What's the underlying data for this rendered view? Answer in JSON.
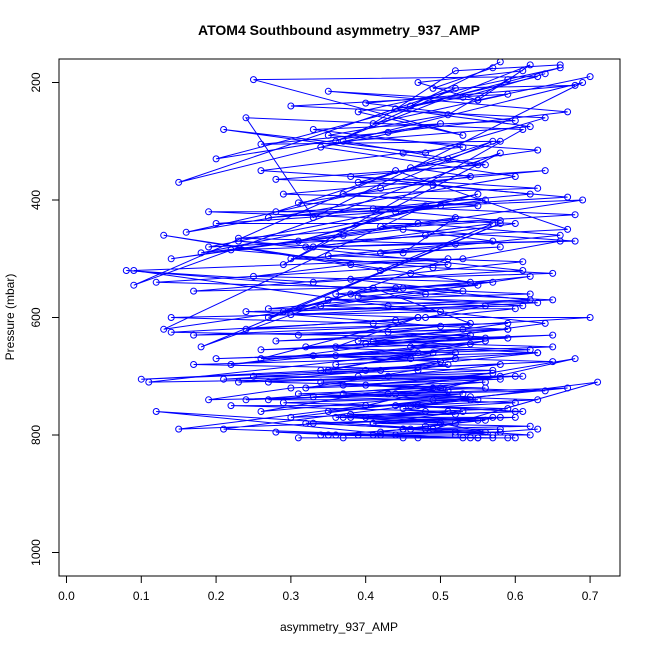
{
  "chart_data": {
    "type": "line",
    "title": "ATOM4 Southbound asymmetry_937_AMP",
    "xlabel": "asymmetry_937_AMP",
    "ylabel": "Pressure (mbar)",
    "xlim": [
      -0.01,
      0.74
    ],
    "ylim": [
      1040,
      160
    ],
    "y_reversed": true,
    "x_ticks": [
      0.0,
      0.1,
      0.2,
      0.3,
      0.4,
      0.5,
      0.6,
      0.7
    ],
    "x_tick_labels": [
      "0.0",
      "0.1",
      "0.2",
      "0.3",
      "0.4",
      "0.5",
      "0.6",
      "0.7"
    ],
    "y_ticks": [
      200,
      400,
      600,
      800,
      1000
    ],
    "y_tick_labels": [
      "200",
      "400",
      "600",
      "800",
      "1000"
    ],
    "grid": false,
    "legend": "none",
    "series_color": "#0000ff",
    "marker": "open-circle",
    "series": [
      {
        "x": [
          0.7,
          0.55,
          0.62,
          0.36,
          0.52,
          0.15,
          0.69,
          0.33,
          0.24,
          0.61,
          0.29,
          0.58,
          0.09,
          0.44,
          0.67,
          0.19,
          0.55,
          0.31,
          0.48,
          0.13,
          0.62,
          0.38,
          0.27,
          0.58,
          0.18,
          0.51,
          0.09,
          0.43,
          0.64,
          0.22,
          0.56,
          0.35,
          0.47,
          0.11,
          0.6,
          0.3,
          0.19,
          0.53,
          0.26,
          0.68,
          0.4,
          0.15,
          0.57,
          0.32,
          0.49,
          0.71,
          0.21,
          0.44,
          0.12,
          0.62,
          0.36,
          0.28,
          0.55,
          0.45,
          0.31,
          0.59,
          0.6
        ],
        "y": [
          190,
          230,
          170,
          300,
          210,
          370,
          200,
          430,
          260,
          280,
          510,
          320,
          545,
          350,
          450,
          480,
          390,
          470,
          410,
          620,
          530,
          560,
          600,
          440,
          650,
          500,
          520,
          580,
          610,
          680,
          640,
          690,
          660,
          710,
          700,
          720,
          740,
          730,
          760,
          670,
          750,
          790,
          770,
          780,
          790,
          710,
          790,
          800,
          760,
          800,
          800,
          795,
          805,
          805,
          805,
          805,
          805
        ]
      },
      {
        "x": [
          0.58,
          0.46,
          0.63,
          0.25,
          0.53,
          0.39,
          0.66,
          0.2,
          0.5,
          0.34,
          0.6,
          0.16,
          0.42,
          0.57,
          0.28,
          0.69,
          0.37,
          0.14,
          0.52,
          0.45,
          0.23,
          0.61,
          0.33,
          0.08,
          0.48,
          0.65,
          0.29,
          0.41,
          0.54,
          0.17,
          0.59,
          0.36,
          0.47,
          0.26,
          0.63,
          0.4,
          0.1,
          0.51,
          0.32,
          0.56,
          0.24,
          0.44,
          0.67,
          0.35,
          0.49,
          0.3,
          0.53,
          0.41,
          0.58,
          0.46,
          0.34,
          0.52,
          0.63
        ],
        "y": [
          165,
          240,
          190,
          195,
          290,
          250,
          175,
          330,
          270,
          310,
          360,
          455,
          380,
          300,
          420,
          400,
          460,
          500,
          430,
          490,
          470,
          520,
          540,
          520,
          560,
          570,
          590,
          550,
          610,
          630,
          620,
          650,
          600,
          670,
          660,
          690,
          705,
          680,
          720,
          710,
          740,
          730,
          720,
          760,
          740,
          770,
          760,
          780,
          770,
          790,
          800,
          800,
          790
        ]
      },
      {
        "x": [
          0.66,
          0.52,
          0.41,
          0.59,
          0.3,
          0.64,
          0.48,
          0.21,
          0.55,
          0.38,
          0.62,
          0.27,
          0.5,
          0.18,
          0.45,
          0.68,
          0.33,
          0.57,
          0.42,
          0.13,
          0.54,
          0.36,
          0.61,
          0.24,
          0.47,
          0.7,
          0.31,
          0.53,
          0.39,
          0.65,
          0.2,
          0.49,
          0.34,
          0.58,
          0.43,
          0.27,
          0.56,
          0.37,
          0.63,
          0.46,
          0.22,
          0.51,
          0.4,
          0.6,
          0.33,
          0.48,
          0.57,
          0.42,
          0.54,
          0.37
        ],
        "y": [
          170,
          180,
          270,
          220,
          240,
          260,
          320,
          280,
          340,
          360,
          390,
          430,
          410,
          490,
          450,
          470,
          480,
          440,
          520,
          460,
          540,
          560,
          580,
          590,
          600,
          600,
          630,
          620,
          640,
          650,
          670,
          660,
          690,
          680,
          700,
          710,
          720,
          730,
          740,
          750,
          750,
          760,
          770,
          770,
          780,
          790,
          800,
          800,
          805,
          805
        ]
      },
      {
        "x": [
          0.61,
          0.47,
          0.55,
          0.35,
          0.67,
          0.43,
          0.26,
          0.58,
          0.51,
          0.39,
          0.64,
          0.29,
          0.56,
          0.44,
          0.19,
          0.6,
          0.48,
          0.32,
          0.66,
          0.53,
          0.38,
          0.25,
          0.57,
          0.45,
          0.62,
          0.34,
          0.5,
          0.14,
          0.41,
          0.59,
          0.28,
          0.54,
          0.46,
          0.63,
          0.36,
          0.52,
          0.42,
          0.23,
          0.58,
          0.49,
          0.31,
          0.55,
          0.44,
          0.61,
          0.38,
          0.5,
          0.56
        ],
        "y": [
          180,
          200,
          230,
          215,
          250,
          285,
          305,
          300,
          330,
          370,
          350,
          390,
          400,
          420,
          420,
          440,
          460,
          480,
          470,
          500,
          510,
          530,
          540,
          550,
          570,
          580,
          590,
          600,
          610,
          620,
          640,
          630,
          650,
          660,
          680,
          670,
          690,
          710,
          700,
          720,
          730,
          740,
          750,
          760,
          770,
          780,
          795
        ]
      },
      {
        "x": [
          0.57,
          0.49,
          0.68,
          0.4,
          0.6,
          0.33,
          0.53,
          0.45,
          0.26,
          0.63,
          0.37,
          0.55,
          0.2,
          0.47,
          0.66,
          0.42,
          0.58,
          0.3,
          0.51,
          0.12,
          0.44,
          0.62,
          0.35,
          0.56,
          0.48,
          0.24,
          0.59,
          0.41,
          0.65,
          0.32,
          0.52,
          0.46,
          0.17,
          0.57,
          0.39,
          0.61,
          0.34,
          0.5,
          0.43,
          0.27,
          0.54,
          0.47,
          0.6,
          0.37,
          0.52,
          0.45,
          0.58,
          0.41,
          0.55
        ],
        "y": [
          175,
          210,
          205,
          235,
          265,
          280,
          310,
          320,
          350,
          380,
          390,
          410,
          440,
          440,
          460,
          490,
          480,
          500,
          510,
          540,
          550,
          560,
          570,
          580,
          600,
          620,
          610,
          640,
          630,
          650,
          660,
          670,
          680,
          690,
          700,
          700,
          710,
          720,
          730,
          740,
          740,
          750,
          760,
          770,
          780,
          790,
          790,
          800,
          805
        ]
      },
      {
        "x": [
          0.64,
          0.53,
          0.44,
          0.62,
          0.37,
          0.56,
          0.28,
          0.49,
          0.67,
          0.41,
          0.58,
          0.23,
          0.52,
          0.35,
          0.61,
          0.46,
          0.17,
          0.55,
          0.39,
          0.63,
          0.3,
          0.5,
          0.43,
          0.59,
          0.26,
          0.54,
          0.36,
          0.65,
          0.47,
          0.21,
          0.57,
          0.4,
          0.51,
          0.33,
          0.6,
          0.45,
          0.52,
          0.38,
          0.56,
          0.48,
          0.42,
          0.58,
          0.35,
          0.53
        ],
        "y": [
          185,
          225,
          245,
          275,
          300,
          340,
          365,
          375,
          395,
          415,
          435,
          465,
          475,
          495,
          505,
          525,
          555,
          545,
          565,
          575,
          595,
          615,
          625,
          635,
          655,
          645,
          665,
          675,
          685,
          705,
          695,
          715,
          725,
          735,
          745,
          755,
          765,
          765,
          775,
          785,
          795,
          795,
          800,
          805
        ]
      },
      {
        "x": [
          0.59,
          0.51,
          0.35,
          0.63,
          0.46,
          0.54,
          0.31,
          0.68,
          0.42,
          0.57,
          0.22,
          0.49,
          0.65,
          0.38,
          0.53,
          0.27,
          0.6,
          0.44,
          0.14,
          0.56,
          0.4,
          0.62,
          0.33,
          0.5,
          0.47,
          0.25,
          0.58,
          0.37,
          0.64,
          0.43,
          0.54,
          0.29,
          0.59,
          0.48,
          0.36,
          0.55,
          0.41,
          0.62,
          0.45,
          0.52,
          0.39,
          0.57,
          0.47
        ],
        "y": [
          195,
          255,
          290,
          315,
          345,
          360,
          405,
          425,
          445,
          470,
          485,
          515,
          525,
          535,
          555,
          585,
          585,
          605,
          625,
          635,
          645,
          655,
          665,
          675,
          690,
          700,
          705,
          715,
          725,
          730,
          735,
          745,
          755,
          760,
          770,
          775,
          780,
          785,
          790,
          795,
          800,
          805,
          805
        ]
      }
    ]
  }
}
